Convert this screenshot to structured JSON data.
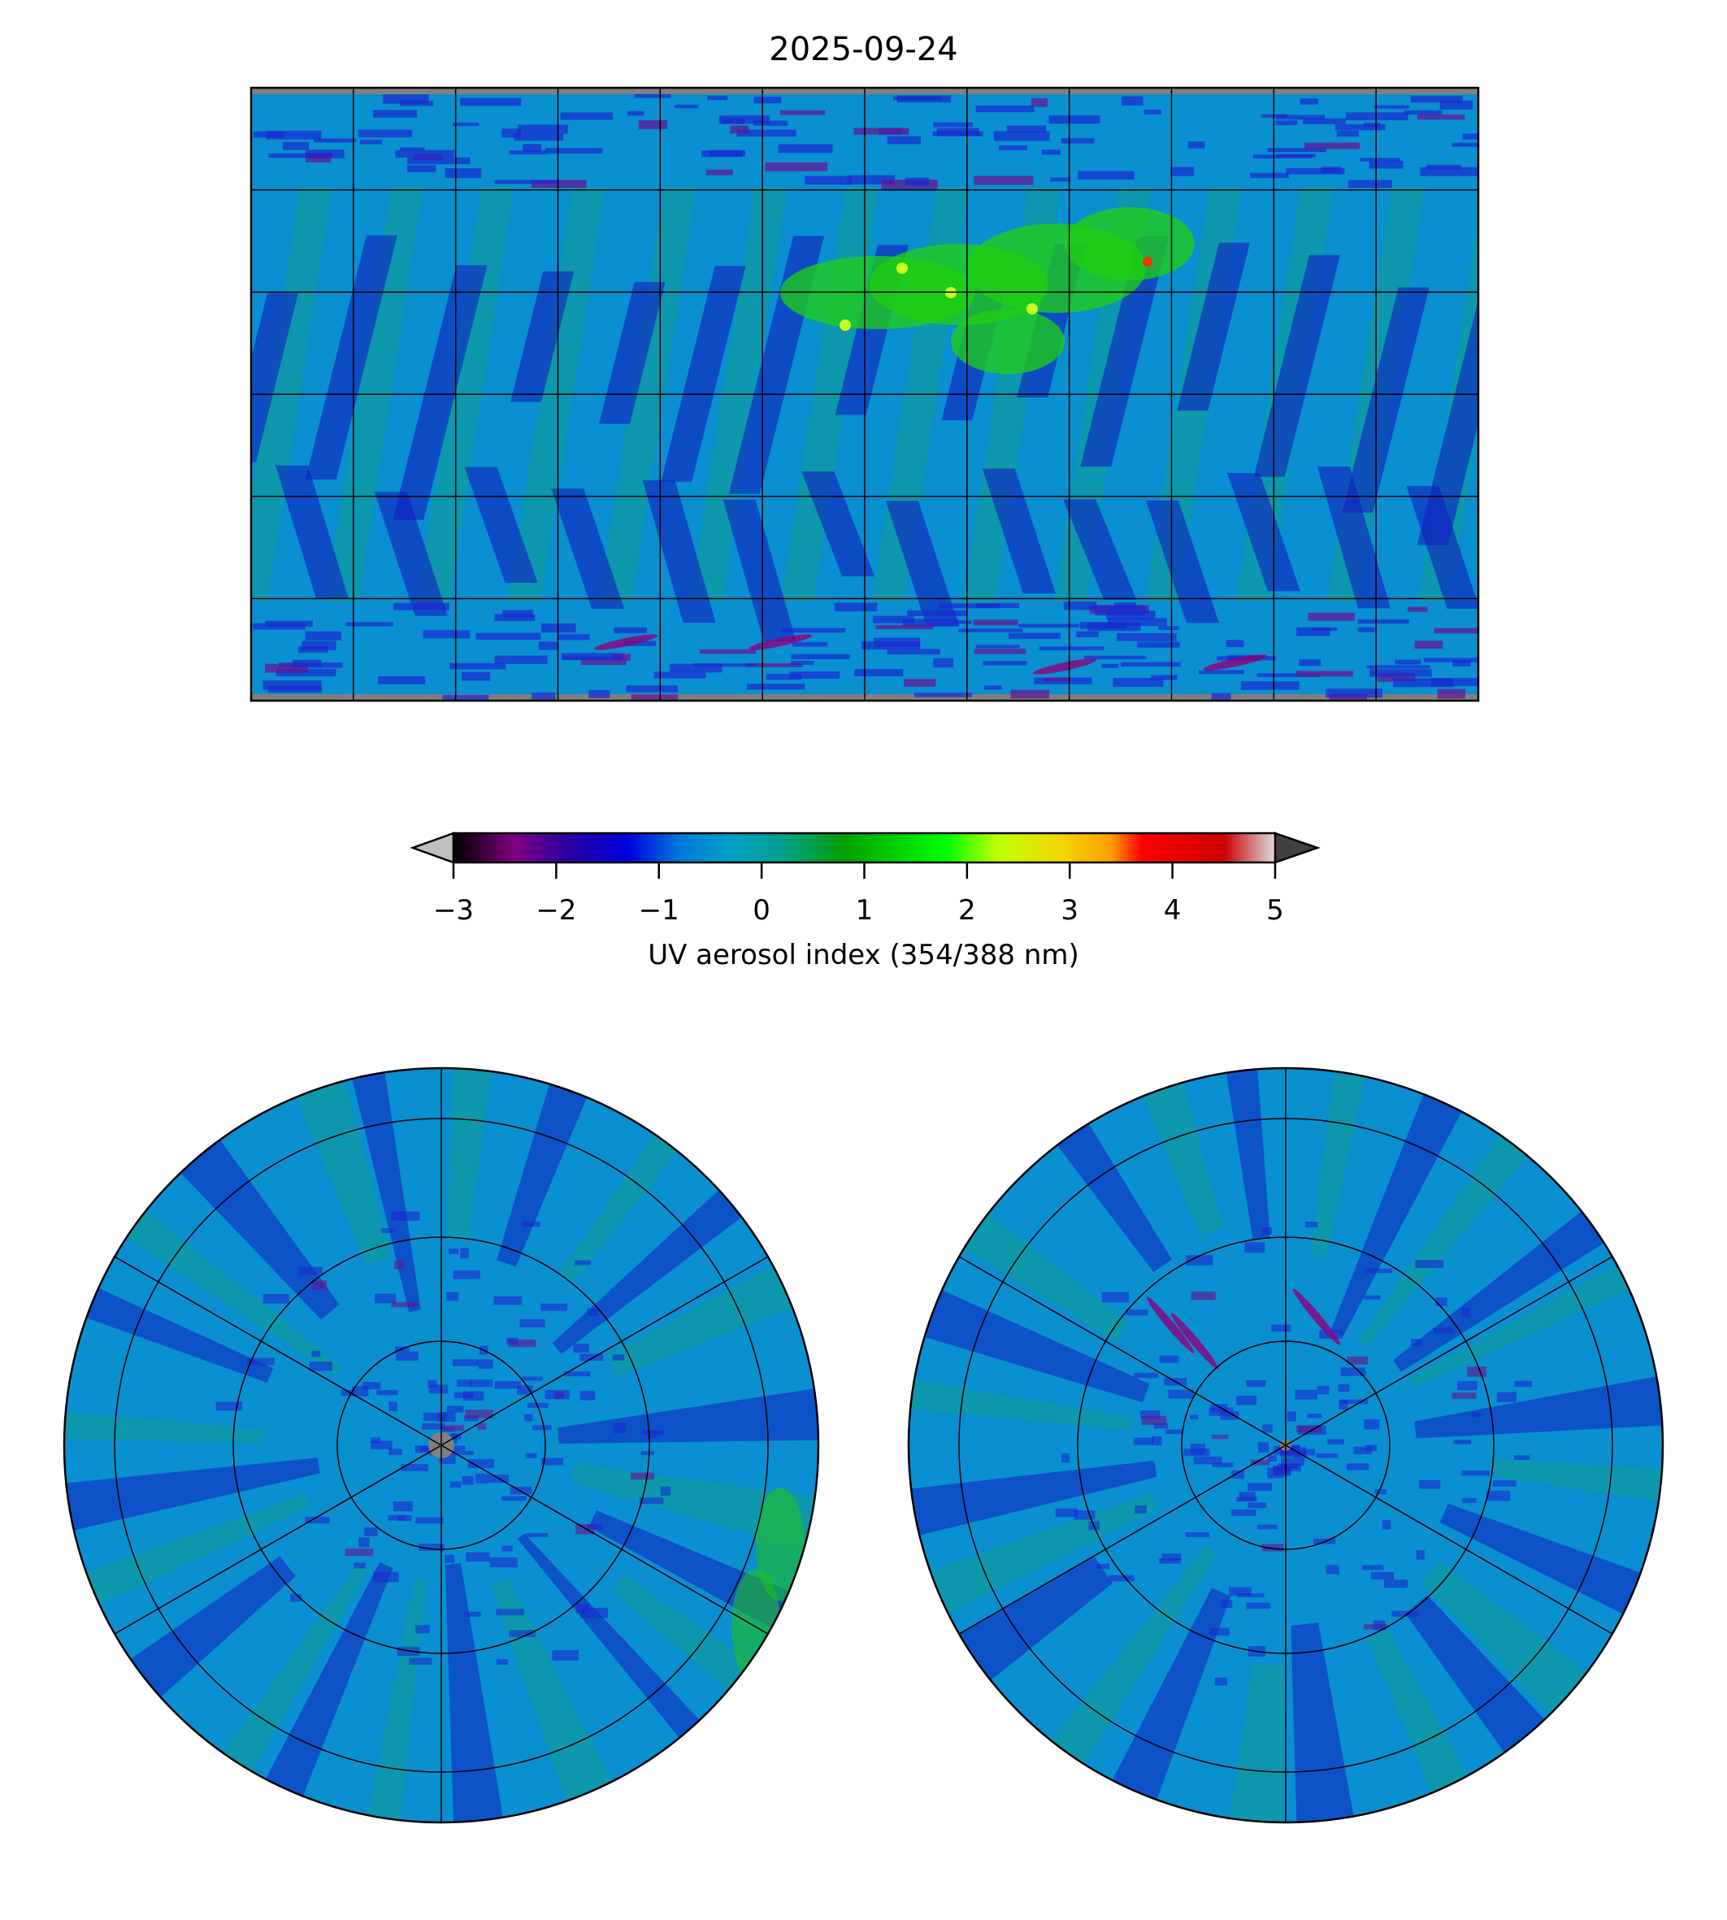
{
  "chart_data": [
    {
      "type": "heatmap",
      "title": "2025-09-24",
      "projection": "plate-carree",
      "variable": "UV aerosol index (354/388 nm)",
      "gridlines": {
        "lon_step_deg": 30,
        "lat_step_deg": 30
      },
      "features": [
        "elevated AI (1-2.5) over Sahara / Middle East / Central Asia",
        "local maximum ~3.5 over Central Asia",
        "negative swaths (-1 to -2) along orbit stripes",
        "purple streaks (-2) near Antarctic coast"
      ]
    },
    {
      "type": "heatmap",
      "title": "",
      "projection": "north-polar-stereographic",
      "variable": "UV aerosol index (354/388 nm)"
    },
    {
      "type": "heatmap",
      "title": "",
      "projection": "south-polar-stereographic",
      "variable": "UV aerosol index (354/388 nm)"
    }
  ],
  "colorbar": {
    "label": "UV aerosol index (354/388 nm)",
    "vmin": -3,
    "vmax": 5,
    "extend": "both",
    "ticks": [
      "−3",
      "−2",
      "−1",
      "0",
      "1",
      "2",
      "3",
      "4",
      "5"
    ],
    "stops": [
      {
        "v": -3,
        "c": "#000000"
      },
      {
        "v": -2.4,
        "c": "#800080"
      },
      {
        "v": -1.9,
        "c": "#2a00a0"
      },
      {
        "v": -1.3,
        "c": "#0000e0"
      },
      {
        "v": -0.8,
        "c": "#0078d8"
      },
      {
        "v": -0.3,
        "c": "#00a0c8"
      },
      {
        "v": 0.2,
        "c": "#00a090"
      },
      {
        "v": 0.8,
        "c": "#00a000"
      },
      {
        "v": 1.8,
        "c": "#00ff00"
      },
      {
        "v": 2.3,
        "c": "#c0ff00"
      },
      {
        "v": 2.9,
        "c": "#f0d800"
      },
      {
        "v": 3.4,
        "c": "#ffa000"
      },
      {
        "v": 3.7,
        "c": "#ff0000"
      },
      {
        "v": 4.5,
        "c": "#cc0000"
      },
      {
        "v": 5,
        "c": "#dddddd"
      }
    ],
    "under_color": "#bfbfbf",
    "over_color": "#404040"
  }
}
